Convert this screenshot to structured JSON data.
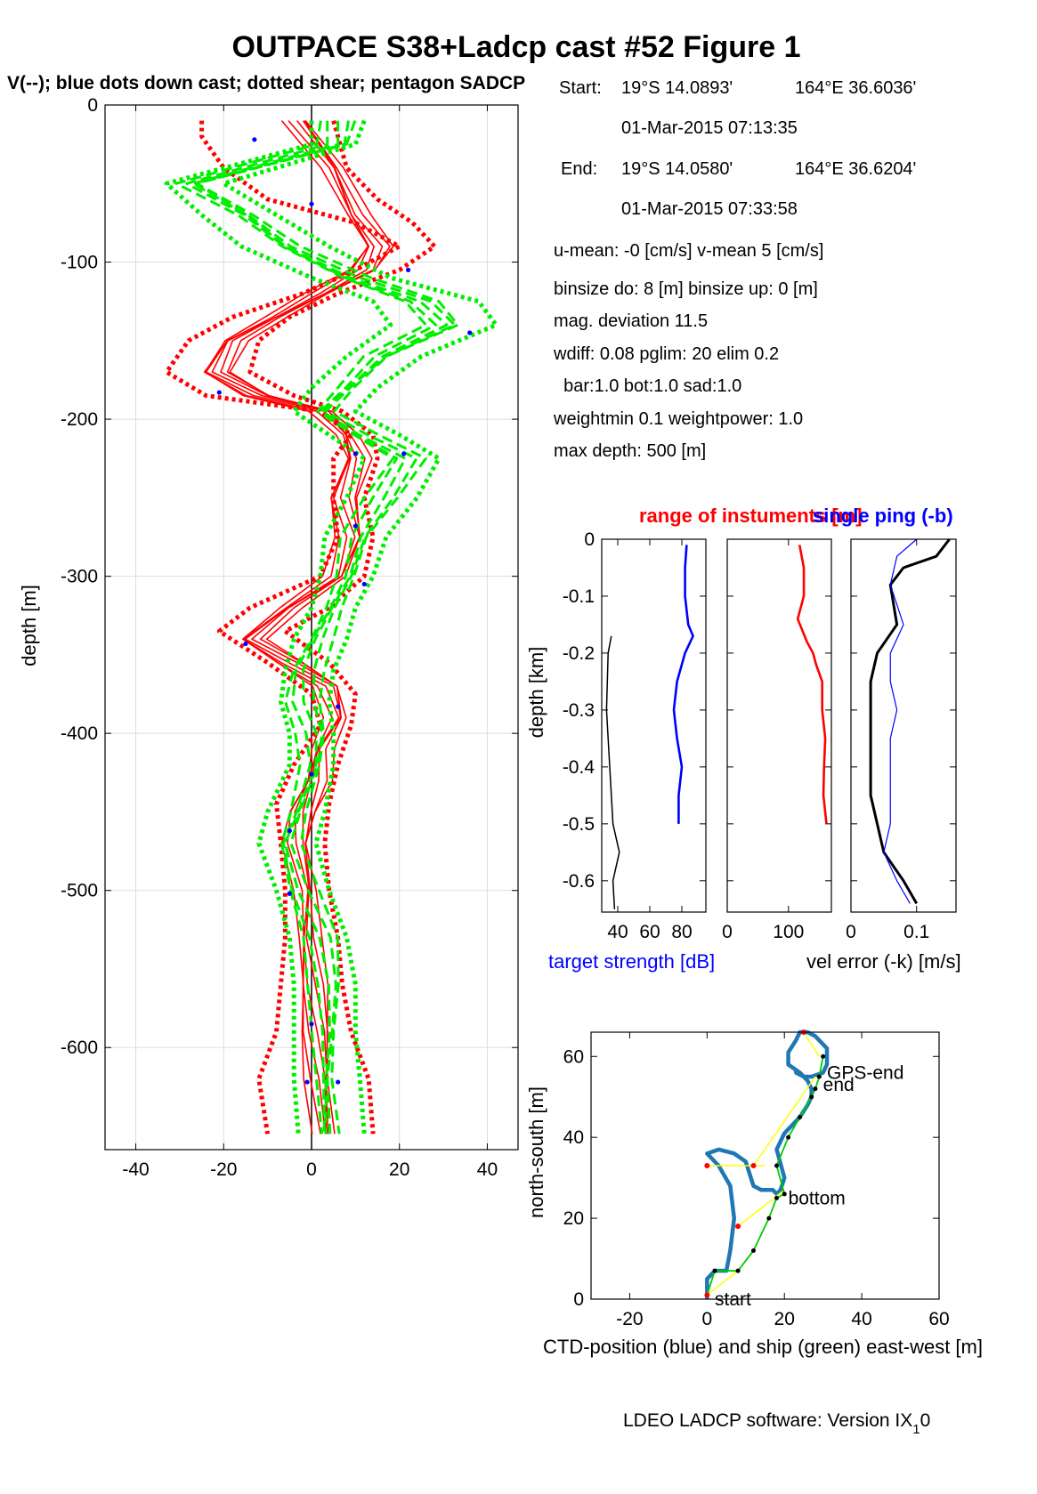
{
  "page": {
    "title": "OUTPACE S38+Ladcp cast #52  Figure 1",
    "subtitle": "V(--); blue dots down cast; dotted shear; pentagon SADCP",
    "footer": "LDEO LADCP software: Version IX",
    "footer_sub": "1",
    "footer_end": "0"
  },
  "info": {
    "start_label": "Start:",
    "start_lat": "19°S 14.0893'",
    "start_lon": "164°E 36.6036'",
    "start_time": "01-Mar-2015 07:13:35",
    "end_label": "End:",
    "end_lat": "19°S 14.0580'",
    "end_lon": "164°E 36.6204'",
    "end_time": "01-Mar-2015 07:33:58",
    "means": "u-mean:  -0 [cm/s]    v-mean   5 [cm/s]",
    "binsize": "binsize do: 8 [m]  binsize up:  0 [m]",
    "magdev": "mag. deviation 11.5",
    "wdiff": "wdiff: 0.08  pglim: 20  elim 0.2",
    "bar": "  bar:1.0 bot:1.0 sad:1.0",
    "weight": "weightmin 0.1  weightpower: 1.0",
    "maxdepth": "max depth: 500 [m]"
  },
  "colors": {
    "red": "#ff0000",
    "green": "#00ee00",
    "blue": "#0000ff",
    "ctd": "#1f77b4",
    "ship": "#00cc00",
    "yellow": "#ffff00",
    "black": "#000000"
  },
  "chart_data": [
    {
      "id": "velocity-profile",
      "type": "line",
      "ylabel": "depth [m]",
      "xlabel": "",
      "xlim": [
        -47,
        47
      ],
      "ylim": [
        -665,
        0
      ],
      "xticks": [
        -40,
        -20,
        0,
        20,
        40
      ],
      "yticks": [
        0,
        -100,
        -200,
        -300,
        -400,
        -500,
        -600
      ],
      "grid": true,
      "series": [
        {
          "color": "red",
          "style": "solid",
          "depth": [
            -10,
            -40,
            -70,
            -90,
            -105,
            -120,
            -135,
            -150,
            -170,
            -185,
            -195,
            -210,
            -225,
            -250,
            -275,
            -300,
            -320,
            -340,
            -355,
            -370,
            -390,
            -410,
            -430,
            -450,
            -470,
            -500,
            -530,
            -560,
            -590,
            -620,
            -655
          ],
          "values": [
            -3,
            5,
            10,
            15,
            12,
            2,
            -8,
            -18,
            -22,
            -12,
            3,
            8,
            10,
            7,
            9,
            6,
            -5,
            -14,
            -5,
            4,
            6,
            2,
            1,
            -2,
            -3,
            -1,
            -1,
            0,
            1,
            2,
            3
          ]
        },
        {
          "color": "red",
          "style": "dotted-shear",
          "depth": [
            -10,
            -20,
            -40,
            -60,
            -75,
            -90,
            -105,
            -120,
            -135,
            -150,
            -170,
            -185,
            -195,
            -210,
            -225,
            -250,
            -275,
            -300,
            -320,
            -335,
            -355,
            -375,
            -395,
            -420,
            -445,
            -470,
            -500,
            -530,
            -560,
            -590,
            -620,
            -655
          ],
          "values": [
            -25,
            -25,
            -20,
            -10,
            10,
            20,
            10,
            -2,
            -18,
            -28,
            -33,
            -24,
            2,
            9,
            5,
            5,
            6,
            2,
            -14,
            -21,
            -10,
            0,
            2,
            -4,
            -8,
            -7,
            -6,
            -6,
            -7,
            -8,
            -12,
            -10
          ]
        },
        {
          "color": "red",
          "style": "dotted-shear",
          "depth": [
            -10,
            -20,
            -40,
            -60,
            -75,
            -90,
            -105,
            -120,
            -135,
            -150,
            -170,
            -185,
            -195,
            -210,
            -225,
            -250,
            -275,
            -300,
            -320,
            -335,
            -355,
            -375,
            -395,
            -420,
            -445,
            -470,
            -500,
            -530,
            -560,
            -590,
            -620,
            -655
          ],
          "values": [
            5,
            6,
            8,
            15,
            23,
            28,
            20,
            6,
            -5,
            -12,
            -14,
            -4,
            7,
            14,
            15,
            12,
            14,
            12,
            4,
            -6,
            4,
            10,
            9,
            6,
            4,
            3,
            4,
            6,
            7,
            9,
            13,
            14
          ]
        },
        {
          "color": "green",
          "style": "dashed",
          "depth": [
            -10,
            -25,
            -50,
            -70,
            -90,
            -110,
            -125,
            -140,
            -160,
            -180,
            -195,
            -210,
            -225,
            -250,
            -275,
            -300,
            -320,
            -340,
            -360,
            -380,
            -400,
            -420,
            -450,
            -470,
            -500,
            -530,
            -560,
            -590,
            -620,
            -655
          ],
          "values": [
            6,
            5,
            -28,
            -15,
            -5,
            10,
            25,
            30,
            15,
            8,
            3,
            12,
            22,
            16,
            10,
            8,
            5,
            2,
            -1,
            -2,
            0,
            0,
            -3,
            -5,
            -2,
            2,
            3,
            3,
            3,
            4
          ]
        },
        {
          "color": "green",
          "style": "dotted-shear",
          "depth": [
            -10,
            -25,
            -50,
            -70,
            -90,
            -110,
            -125,
            -140,
            -160,
            -180,
            -195,
            -210,
            -225,
            -250,
            -275,
            -300,
            -320,
            -340,
            -360,
            -380,
            -400,
            -420,
            -450,
            -470,
            -500,
            -530,
            -560,
            -590,
            -620,
            -655
          ],
          "values": [
            0,
            0,
            -33,
            -25,
            -16,
            0,
            14,
            18,
            8,
            0,
            -4,
            4,
            12,
            8,
            3,
            2,
            0,
            -4,
            -6,
            -7,
            -5,
            -5,
            -10,
            -12,
            -8,
            -5,
            -4,
            -4,
            -4,
            -3
          ]
        },
        {
          "color": "green",
          "style": "dotted-shear",
          "depth": [
            -10,
            -25,
            -50,
            -70,
            -90,
            -110,
            -125,
            -140,
            -160,
            -180,
            -195,
            -210,
            -225,
            -250,
            -275,
            -300,
            -320,
            -340,
            -360,
            -380,
            -400,
            -420,
            -450,
            -470,
            -500,
            -530,
            -560,
            -590,
            -620,
            -655
          ],
          "values": [
            12,
            10,
            -20,
            -8,
            4,
            18,
            38,
            42,
            25,
            15,
            10,
            20,
            29,
            24,
            17,
            14,
            10,
            8,
            5,
            4,
            5,
            5,
            3,
            1,
            4,
            8,
            10,
            10,
            11,
            12
          ]
        }
      ],
      "blue_dots": [
        {
          "u": -13,
          "depth": -22
        },
        {
          "u": 0,
          "depth": -63
        },
        {
          "u": 22,
          "depth": -105
        },
        {
          "u": 36,
          "depth": -145
        },
        {
          "u": -21,
          "depth": -183
        },
        {
          "u": 10,
          "depth": -222
        },
        {
          "u": 21,
          "depth": -222
        },
        {
          "u": 10,
          "depth": -268
        },
        {
          "u": 12,
          "depth": -305
        },
        {
          "u": -15,
          "depth": -343
        },
        {
          "u": 6,
          "depth": -383
        },
        {
          "u": 0,
          "depth": -426
        },
        {
          "u": -5,
          "depth": -462
        },
        {
          "u": -5,
          "depth": -502
        },
        {
          "u": 0,
          "depth": -585
        },
        {
          "u": 6,
          "depth": -622
        },
        {
          "u": -1,
          "depth": -622
        }
      ]
    },
    {
      "id": "target-strength",
      "type": "line",
      "title": "range of instuments [m]",
      "xlabel": "target strength [dB]",
      "ylabel": "depth [km]",
      "xlim": [
        30,
        95
      ],
      "ylim": [
        -0.655,
        0
      ],
      "xticks": [
        40,
        60,
        80
      ],
      "yticks": [
        0,
        -0.1,
        -0.2,
        -0.3,
        -0.4,
        -0.5,
        -0.6
      ],
      "series": [
        {
          "color": "blue",
          "depth": [
            -0.01,
            -0.05,
            -0.1,
            -0.15,
            -0.17,
            -0.2,
            -0.25,
            -0.3,
            -0.35,
            -0.4,
            -0.45,
            -0.5
          ],
          "values": [
            83,
            82,
            82,
            84,
            87,
            82,
            77,
            75,
            77,
            80,
            78,
            78
          ]
        },
        {
          "color": "black",
          "depth": [
            -0.17,
            -0.2,
            -0.3,
            -0.4,
            -0.5,
            -0.55,
            -0.6,
            -0.65
          ],
          "values": [
            36,
            34,
            33,
            35,
            37,
            41,
            37,
            38
          ]
        }
      ]
    },
    {
      "id": "range-of-instruments",
      "type": "line",
      "xlabel": "",
      "xlim": [
        0,
        170
      ],
      "ylim": [
        -0.655,
        0
      ],
      "xticks": [
        0,
        100
      ],
      "series": [
        {
          "color": "red",
          "depth": [
            -0.01,
            -0.05,
            -0.1,
            -0.14,
            -0.18,
            -0.2,
            -0.22,
            -0.25,
            -0.3,
            -0.35,
            -0.4,
            -0.45,
            -0.5
          ],
          "values": [
            118,
            125,
            125,
            115,
            130,
            140,
            145,
            155,
            155,
            160,
            158,
            157,
            162
          ]
        }
      ]
    },
    {
      "id": "vel-error",
      "type": "line",
      "title": "single ping (-b)",
      "xlabel": "vel error (-k) [m/s]",
      "xlim": [
        0,
        0.16
      ],
      "ylim": [
        -0.655,
        0
      ],
      "xticks": [
        0,
        0.1
      ],
      "series": [
        {
          "color": "black",
          "depth": [
            0,
            -0.03,
            -0.05,
            -0.08,
            -0.15,
            -0.2,
            -0.25,
            -0.3,
            -0.35,
            -0.4,
            -0.45,
            -0.5,
            -0.55,
            -0.6,
            -0.64
          ],
          "values": [
            0.15,
            0.13,
            0.08,
            0.06,
            0.07,
            0.04,
            0.03,
            0.03,
            0.03,
            0.03,
            0.03,
            0.04,
            0.05,
            0.08,
            0.1
          ]
        },
        {
          "color": "blue",
          "depth": [
            0,
            -0.03,
            -0.08,
            -0.15,
            -0.2,
            -0.25,
            -0.3,
            -0.35,
            -0.4,
            -0.45,
            -0.5,
            -0.55,
            -0.6,
            -0.64
          ],
          "values": [
            0.1,
            0.07,
            0.06,
            0.08,
            0.06,
            0.06,
            0.07,
            0.06,
            0.06,
            0.06,
            0.06,
            0.05,
            0.07,
            0.09
          ]
        }
      ]
    },
    {
      "id": "positions",
      "type": "line",
      "xlabel": "CTD-position (blue) and ship (green) east-west [m]",
      "ylabel": "north-south [m]",
      "xlim": [
        -30,
        60
      ],
      "ylim": [
        0,
        66
      ],
      "xticks": [
        -20,
        0,
        20,
        40,
        60
      ],
      "yticks": [
        0,
        20,
        40,
        60
      ],
      "labels": [
        {
          "text": "start",
          "x": 2,
          "y": 0
        },
        {
          "text": "bottom",
          "x": 21,
          "y": 25
        },
        {
          "text": "end",
          "x": 30,
          "y": 53
        },
        {
          "text": "GPS-end",
          "x": 31,
          "y": 56
        }
      ],
      "series": [
        {
          "name": "CTD",
          "color": "ctd",
          "x": [
            0,
            0,
            2,
            5,
            6,
            7,
            6,
            3,
            1,
            0,
            3,
            7,
            10,
            11,
            12,
            14,
            17,
            18,
            19,
            20,
            18,
            20,
            24,
            26,
            27,
            27,
            26,
            24,
            21,
            21,
            23,
            24,
            26,
            28,
            31,
            31,
            30,
            27,
            25,
            23,
            23
          ],
          "y": [
            0,
            5,
            7,
            7,
            12,
            20,
            28,
            33,
            35,
            36,
            37,
            36,
            34,
            31,
            28,
            27,
            27,
            26,
            27,
            30,
            37,
            41,
            45,
            48,
            50,
            52,
            54,
            56,
            58,
            61,
            64,
            66,
            66,
            65,
            62,
            58,
            56,
            55,
            55,
            56,
            57
          ]
        },
        {
          "name": "ship",
          "color": "ship",
          "x": [
            0,
            2,
            8,
            12,
            16,
            18,
            20,
            18,
            21,
            24,
            27,
            28,
            29,
            30
          ],
          "y": [
            1,
            7,
            7,
            12,
            20,
            25,
            26,
            33,
            40,
            45,
            50,
            52,
            55,
            60
          ]
        },
        {
          "name": "segments",
          "color": "yellow",
          "x": [
            0,
            8,
            0,
            15,
            8,
            20,
            12,
            28,
            25,
            29
          ],
          "y": [
            1,
            7,
            33,
            33,
            18,
            27,
            33,
            55,
            66,
            60
          ]
        }
      ]
    }
  ]
}
